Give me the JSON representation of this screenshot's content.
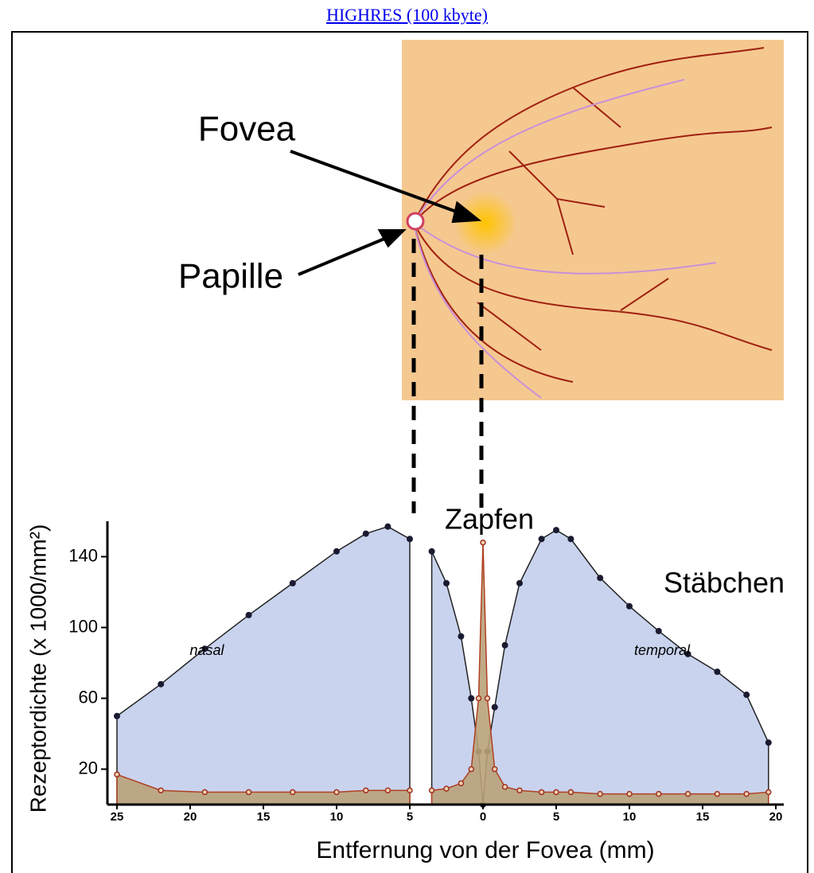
{
  "link": "HIGHRES (100 kbyte)",
  "figure": {
    "fovea": "Fovea",
    "papille": "Papille"
  },
  "chart_data": {
    "type": "area",
    "xlabel": "Entfernung von der Fovea (mm)",
    "ylabel": "Rezeptordichte (x 1000/mm²)",
    "annotations": [
      "nasal",
      "temporal",
      "Zapfen",
      "Stäbchen"
    ],
    "x": [
      -25,
      -22,
      -19,
      -16,
      -13,
      -10,
      -8,
      -6.5,
      -5,
      -4.25,
      -3.5,
      -2.5,
      -1.5,
      -0.8,
      -0.3,
      0,
      0.3,
      0.8,
      1.5,
      2.5,
      4,
      5,
      6,
      8,
      10,
      12,
      14,
      16,
      18,
      19.5
    ],
    "series": [
      {
        "name": "Stäbchen",
        "color": "#c9d3ee",
        "values": [
          50,
          68,
          88,
          107,
          125,
          143,
          153,
          157,
          150,
          null,
          143,
          125,
          95,
          60,
          30,
          0,
          30,
          55,
          90,
          125,
          150,
          155,
          150,
          128,
          112,
          98,
          85,
          75,
          62,
          35
        ]
      },
      {
        "name": "Zapfen",
        "color": "#b9a27a",
        "values": [
          17,
          8,
          7,
          7,
          7,
          7,
          8,
          8,
          8,
          null,
          8,
          9,
          12,
          20,
          60,
          148,
          60,
          20,
          10,
          8,
          7,
          7,
          7,
          6,
          6,
          6,
          6,
          6,
          6,
          7
        ]
      }
    ],
    "xlim": [
      -25.5,
      20
    ],
    "xticks": [
      {
        "value": -25,
        "label": "25"
      },
      {
        "value": -20,
        "label": "20"
      },
      {
        "value": -15,
        "label": "15"
      },
      {
        "value": -10,
        "label": "10"
      },
      {
        "value": -5,
        "label": "5"
      },
      0,
      5,
      10,
      15,
      20
    ],
    "ylim": [
      0,
      160
    ],
    "yticks": [
      20,
      60,
      100,
      140
    ]
  }
}
